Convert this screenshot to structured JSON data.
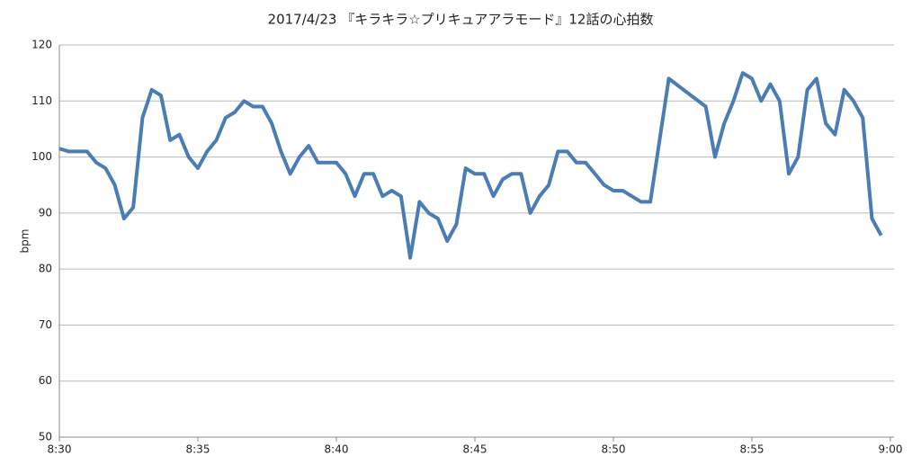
{
  "chart_data": {
    "type": "line",
    "title": "2017/4/23 『キラキラ☆プリキュアアラモード』12話の心拍数",
    "y_label": "bpm",
    "x": [
      "8:30:00",
      "8:30:20",
      "8:31:00",
      "8:31:20",
      "8:31:40",
      "8:32:00",
      "8:32:20",
      "8:32:40",
      "8:33:00",
      "8:33:20",
      "8:33:40",
      "8:34:00",
      "8:34:20",
      "8:34:40",
      "8:35:00",
      "8:35:20",
      "8:35:40",
      "8:36:00",
      "8:36:20",
      "8:36:40",
      "8:37:00",
      "8:37:20",
      "8:37:40",
      "8:38:00",
      "8:38:20",
      "8:38:40",
      "8:39:00",
      "8:39:20",
      "8:39:40",
      "8:40:00",
      "8:40:20",
      "8:40:40",
      "8:41:00",
      "8:41:20",
      "8:41:40",
      "8:42:00",
      "8:42:20",
      "8:42:40",
      "8:43:00",
      "8:43:20",
      "8:43:40",
      "8:44:00",
      "8:44:20",
      "8:44:40",
      "8:45:00",
      "8:45:20",
      "8:45:40",
      "8:46:00",
      "8:46:20",
      "8:46:40",
      "8:47:00",
      "8:47:20",
      "8:47:40",
      "8:48:00",
      "8:48:20",
      "8:48:40",
      "8:49:00",
      "8:49:20",
      "8:49:40",
      "8:50:00",
      "8:50:20",
      "8:50:40",
      "8:51:00",
      "8:51:20",
      "8:52:00",
      "8:53:20",
      "8:53:40",
      "8:54:00",
      "8:54:20",
      "8:54:40",
      "8:55:00",
      "8:55:20",
      "8:55:40",
      "8:56:00",
      "8:56:20",
      "8:56:40",
      "8:57:00",
      "8:57:20",
      "8:57:40",
      "8:58:00",
      "8:58:20",
      "8:58:40",
      "8:59:00",
      "8:59:20",
      "8:59:40"
    ],
    "series": [
      {
        "name": "bpm",
        "color": "#4a7cb6",
        "values": [
          101.5,
          101,
          101,
          99,
          98,
          95,
          89,
          91,
          107,
          112,
          111,
          103,
          104,
          100,
          98,
          101,
          103,
          107,
          108,
          110,
          109,
          109,
          106,
          101,
          97,
          100,
          102,
          99,
          99,
          99,
          97,
          93,
          97,
          97,
          93,
          94,
          93,
          82,
          92,
          90,
          89,
          85,
          88,
          98,
          97,
          97,
          93,
          96,
          97,
          97,
          90,
          93,
          95,
          101,
          101,
          99,
          99,
          97,
          95,
          94,
          94,
          93,
          92,
          92,
          114,
          109,
          100,
          106,
          110,
          115,
          114,
          110,
          113,
          110,
          97,
          100,
          112,
          114,
          106,
          104,
          112,
          110,
          107,
          89,
          86
        ]
      }
    ],
    "xlim": [
      "8:30",
      "9:00"
    ],
    "xticks": [
      "8:30",
      "8:35",
      "8:40",
      "8:45",
      "8:50",
      "8:55",
      "9:00"
    ],
    "ylim": [
      50,
      120
    ],
    "yticks": [
      50,
      60,
      70,
      80,
      90,
      100,
      110,
      120
    ],
    "grid": true
  }
}
